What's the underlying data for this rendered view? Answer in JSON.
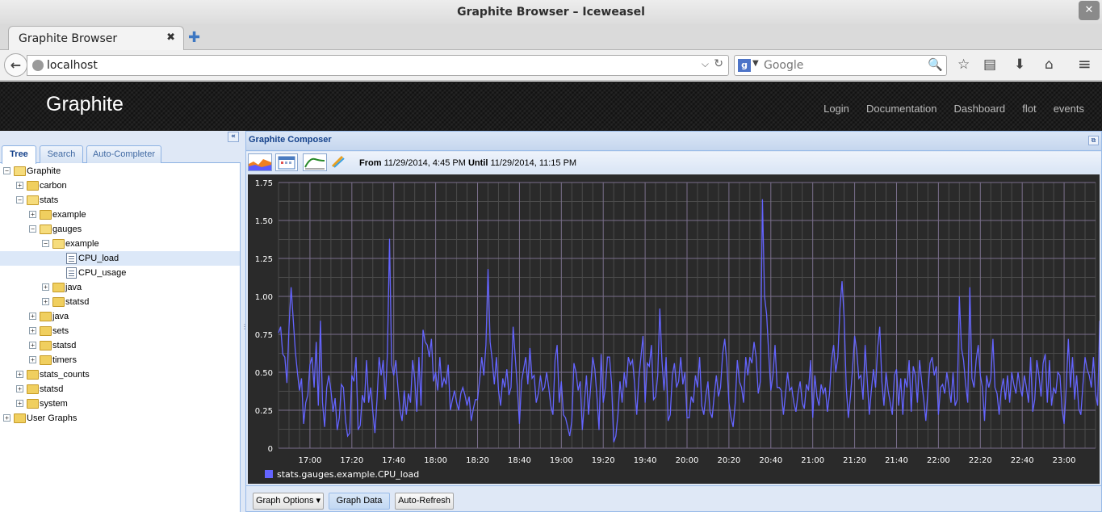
{
  "window": {
    "title": "Graphite Browser – Iceweasel",
    "close_glyph": "✕"
  },
  "browser": {
    "tab_title": "Graphite Browser",
    "tab_close": "✖",
    "new_tab": "✚",
    "back": "←",
    "url": "localhost",
    "url_dropdown": "⌵",
    "reload": "↻",
    "search_engine": "g",
    "search_engine_dd": "▼",
    "search_placeholder": "Google",
    "search_glyph": "⚲",
    "icons": {
      "bookmark": "☆",
      "reading_list": "▤",
      "download": "⬇",
      "home": "⌂",
      "menu": "≡"
    }
  },
  "header": {
    "brand": "Graphite",
    "nav": [
      "Login",
      "Documentation",
      "Dashboard",
      "flot",
      "events"
    ]
  },
  "left": {
    "collapse_glyph": "«",
    "tabs": [
      "Tree",
      "Search",
      "Auto-Completer"
    ],
    "tree": [
      {
        "label": "Graphite",
        "depth": 0,
        "type": "folder",
        "expanded": true
      },
      {
        "label": "carbon",
        "depth": 1,
        "type": "folder",
        "expanded": false
      },
      {
        "label": "stats",
        "depth": 1,
        "type": "folder",
        "expanded": true
      },
      {
        "label": "example",
        "depth": 2,
        "type": "folder",
        "expanded": false
      },
      {
        "label": "gauges",
        "depth": 2,
        "type": "folder",
        "expanded": true
      },
      {
        "label": "example",
        "depth": 3,
        "type": "folder",
        "expanded": true
      },
      {
        "label": "CPU_load",
        "depth": 4,
        "type": "leaf",
        "selected": true
      },
      {
        "label": "CPU_usage",
        "depth": 4,
        "type": "leaf"
      },
      {
        "label": "java",
        "depth": 3,
        "type": "folder",
        "expanded": false
      },
      {
        "label": "statsd",
        "depth": 3,
        "type": "folder",
        "expanded": false
      },
      {
        "label": "java",
        "depth": 2,
        "type": "folder",
        "expanded": false
      },
      {
        "label": "sets",
        "depth": 2,
        "type": "folder",
        "expanded": false
      },
      {
        "label": "statsd",
        "depth": 2,
        "type": "folder",
        "expanded": false
      },
      {
        "label": "timers",
        "depth": 2,
        "type": "folder",
        "expanded": false
      },
      {
        "label": "stats_counts",
        "depth": 1,
        "type": "folder",
        "expanded": false
      },
      {
        "label": "statsd",
        "depth": 1,
        "type": "folder",
        "expanded": false
      },
      {
        "label": "system",
        "depth": 1,
        "type": "folder",
        "expanded": false
      },
      {
        "label": "User Graphs",
        "depth": 0,
        "type": "folder",
        "expanded": false
      }
    ]
  },
  "composer": {
    "title": "Graphite Composer",
    "restore_glyph": "⧉",
    "from_label": "From",
    "from_value": "11/29/2014, 4:45 PM",
    "until_label": "Until",
    "until_value": "11/29/2014, 11:15 PM",
    "buttons": {
      "options": "Graph Options ▾",
      "data": "Graph Data",
      "refresh": "Auto-Refresh"
    }
  },
  "chart_data": {
    "type": "line",
    "title": "",
    "xlabel": "",
    "ylabel": "",
    "x_range": [
      "16:45",
      "23:15"
    ],
    "x_ticks": [
      "17:00",
      "17:20",
      "17:40",
      "18:00",
      "18:20",
      "18:40",
      "19:00",
      "19:20",
      "19:40",
      "20:00",
      "20:20",
      "20:40",
      "21:00",
      "21:20",
      "21:40",
      "22:00",
      "22:20",
      "22:40",
      "23:00"
    ],
    "y_ticks": [
      "0",
      "0.25",
      "0.50",
      "0.75",
      "1.00",
      "1.25",
      "1.50",
      "1.75"
    ],
    "ylim": [
      0,
      1.75
    ],
    "grid": true,
    "legend_position": "bottom-left",
    "series": [
      {
        "name": "stats.gauges.example.CPU_load",
        "color": "#6464ff",
        "minute_step": 1,
        "values": [
          0.76,
          0.8,
          0.62,
          0.6,
          0.43,
          0.8,
          1.06,
          0.85,
          0.64,
          0.5,
          0.38,
          0.46,
          0.16,
          0.3,
          0.35,
          0.55,
          0.6,
          0.4,
          0.7,
          0.28,
          0.84,
          0.3,
          0.14,
          0.4,
          0.48,
          0.38,
          0.24,
          0.33,
          0.12,
          0.2,
          0.42,
          0.4,
          0.18,
          0.08,
          0.1,
          0.48,
          0.44,
          0.6,
          0.12,
          0.15,
          0.35,
          0.3,
          0.58,
          0.3,
          0.4,
          0.24,
          0.1,
          0.32,
          0.6,
          0.48,
          0.58,
          0.32,
          0.63,
          1.38,
          0.55,
          0.48,
          0.58,
          0.4,
          0.25,
          0.18,
          0.38,
          0.22,
          0.36,
          0.3,
          0.58,
          0.46,
          0.24,
          0.6,
          0.28,
          0.78,
          0.7,
          0.68,
          0.6,
          0.72,
          0.44,
          0.5,
          0.38,
          0.6,
          0.4,
          0.46,
          0.42,
          0.55,
          0.25,
          0.32,
          0.38,
          0.3,
          0.25,
          0.36,
          0.4,
          0.35,
          0.28,
          0.34,
          0.18,
          0.26,
          0.32,
          0.32,
          0.45,
          0.6,
          0.48,
          0.68,
          1.18,
          0.7,
          0.58,
          0.42,
          0.6,
          0.38,
          0.28,
          0.46,
          0.4,
          0.52,
          0.35,
          0.4,
          0.8,
          0.6,
          0.4,
          0.16,
          0.44,
          0.52,
          0.6,
          0.42,
          0.66,
          0.46,
          0.48,
          0.3,
          0.36,
          0.48,
          0.38,
          0.4,
          0.5,
          0.4,
          0.28,
          0.22,
          0.58,
          0.68,
          0.3,
          0.44,
          0.22,
          0.2,
          0.14,
          0.08,
          0.18,
          0.56,
          0.5,
          0.38,
          0.44,
          0.12,
          0.3,
          0.48,
          0.22,
          0.4,
          0.6,
          0.52,
          0.34,
          0.12,
          0.62,
          0.3,
          0.4,
          0.6,
          0.6,
          0.42,
          0.04,
          0.08,
          0.22,
          0.44,
          0.3,
          0.5,
          0.4,
          0.6,
          0.55,
          0.58,
          0.42,
          0.22,
          0.46,
          0.6,
          0.74,
          0.3,
          0.56,
          0.54,
          0.68,
          0.32,
          0.34,
          0.48,
          0.92,
          0.58,
          0.38,
          0.6,
          0.18,
          0.22,
          0.48,
          0.56,
          0.4,
          0.44,
          0.6,
          0.42,
          0.5,
          0.2,
          0.2,
          0.34,
          0.3,
          0.48,
          0.4,
          0.6,
          0.28,
          0.22,
          0.35,
          0.44,
          0.24,
          0.2,
          0.35,
          0.48,
          0.34,
          0.4,
          0.62,
          0.72,
          0.56,
          0.3,
          0.2,
          0.14,
          0.3,
          0.58,
          0.44,
          0.4,
          0.3,
          0.6,
          0.48,
          0.6,
          0.56,
          0.7,
          0.6,
          0.36,
          0.44,
          1.64,
          1.0,
          0.88,
          0.62,
          0.38,
          0.48,
          0.68,
          0.4,
          0.4,
          0.38,
          0.22,
          0.36,
          0.5,
          0.38,
          0.4,
          0.3,
          0.24,
          0.36,
          0.44,
          0.3,
          0.26,
          0.42,
          0.38,
          0.58,
          0.2,
          0.48,
          0.34,
          0.28,
          0.42,
          0.36,
          0.4,
          0.24,
          0.36,
          0.58,
          0.68,
          0.5,
          0.6,
          0.92,
          1.1,
          0.86,
          0.4,
          0.2,
          0.34,
          0.52,
          0.74,
          0.64,
          0.46,
          0.48,
          0.32,
          0.68,
          0.45,
          0.22,
          0.38,
          0.52,
          0.4,
          0.66,
          0.8,
          0.44,
          0.28,
          0.5,
          0.38,
          0.3,
          0.22,
          0.48,
          0.52,
          0.28,
          0.46,
          0.22,
          0.46,
          0.4,
          0.58,
          0.24,
          0.54,
          0.48,
          0.3,
          0.58,
          0.44,
          0.32,
          0.18,
          0.38,
          0.56,
          0.6,
          0.48,
          0.54,
          0.22,
          0.4,
          0.42,
          0.36,
          0.5,
          0.4,
          0.3,
          0.5,
          0.28,
          0.32,
          1.0,
          0.66,
          0.58,
          0.42,
          0.3,
          1.06,
          0.46,
          0.4,
          0.58,
          0.68,
          0.48,
          0.4,
          0.18,
          0.48,
          0.4,
          0.46,
          0.72,
          0.4,
          0.36,
          0.22,
          0.38,
          0.46,
          0.32,
          0.48,
          0.3,
          0.5,
          0.42,
          0.36,
          0.5,
          0.4,
          0.34,
          0.48,
          0.4,
          0.3,
          0.6,
          0.24,
          0.32,
          0.58,
          0.48,
          0.34,
          0.56,
          0.62,
          0.3,
          0.58,
          0.28,
          0.4,
          0.36,
          0.5,
          0.48,
          0.26,
          0.16,
          0.4,
          0.72,
          0.4,
          0.6,
          0.32,
          0.48,
          0.26,
          0.22,
          0.42,
          0.6,
          0.52,
          0.48,
          0.4,
          0.6,
          0.36,
          0.28,
          0.84,
          0.56,
          0.4,
          0.3,
          0.22,
          0.18,
          0.3,
          0.26,
          0.08,
          0.2,
          0.32
        ]
      }
    ]
  }
}
